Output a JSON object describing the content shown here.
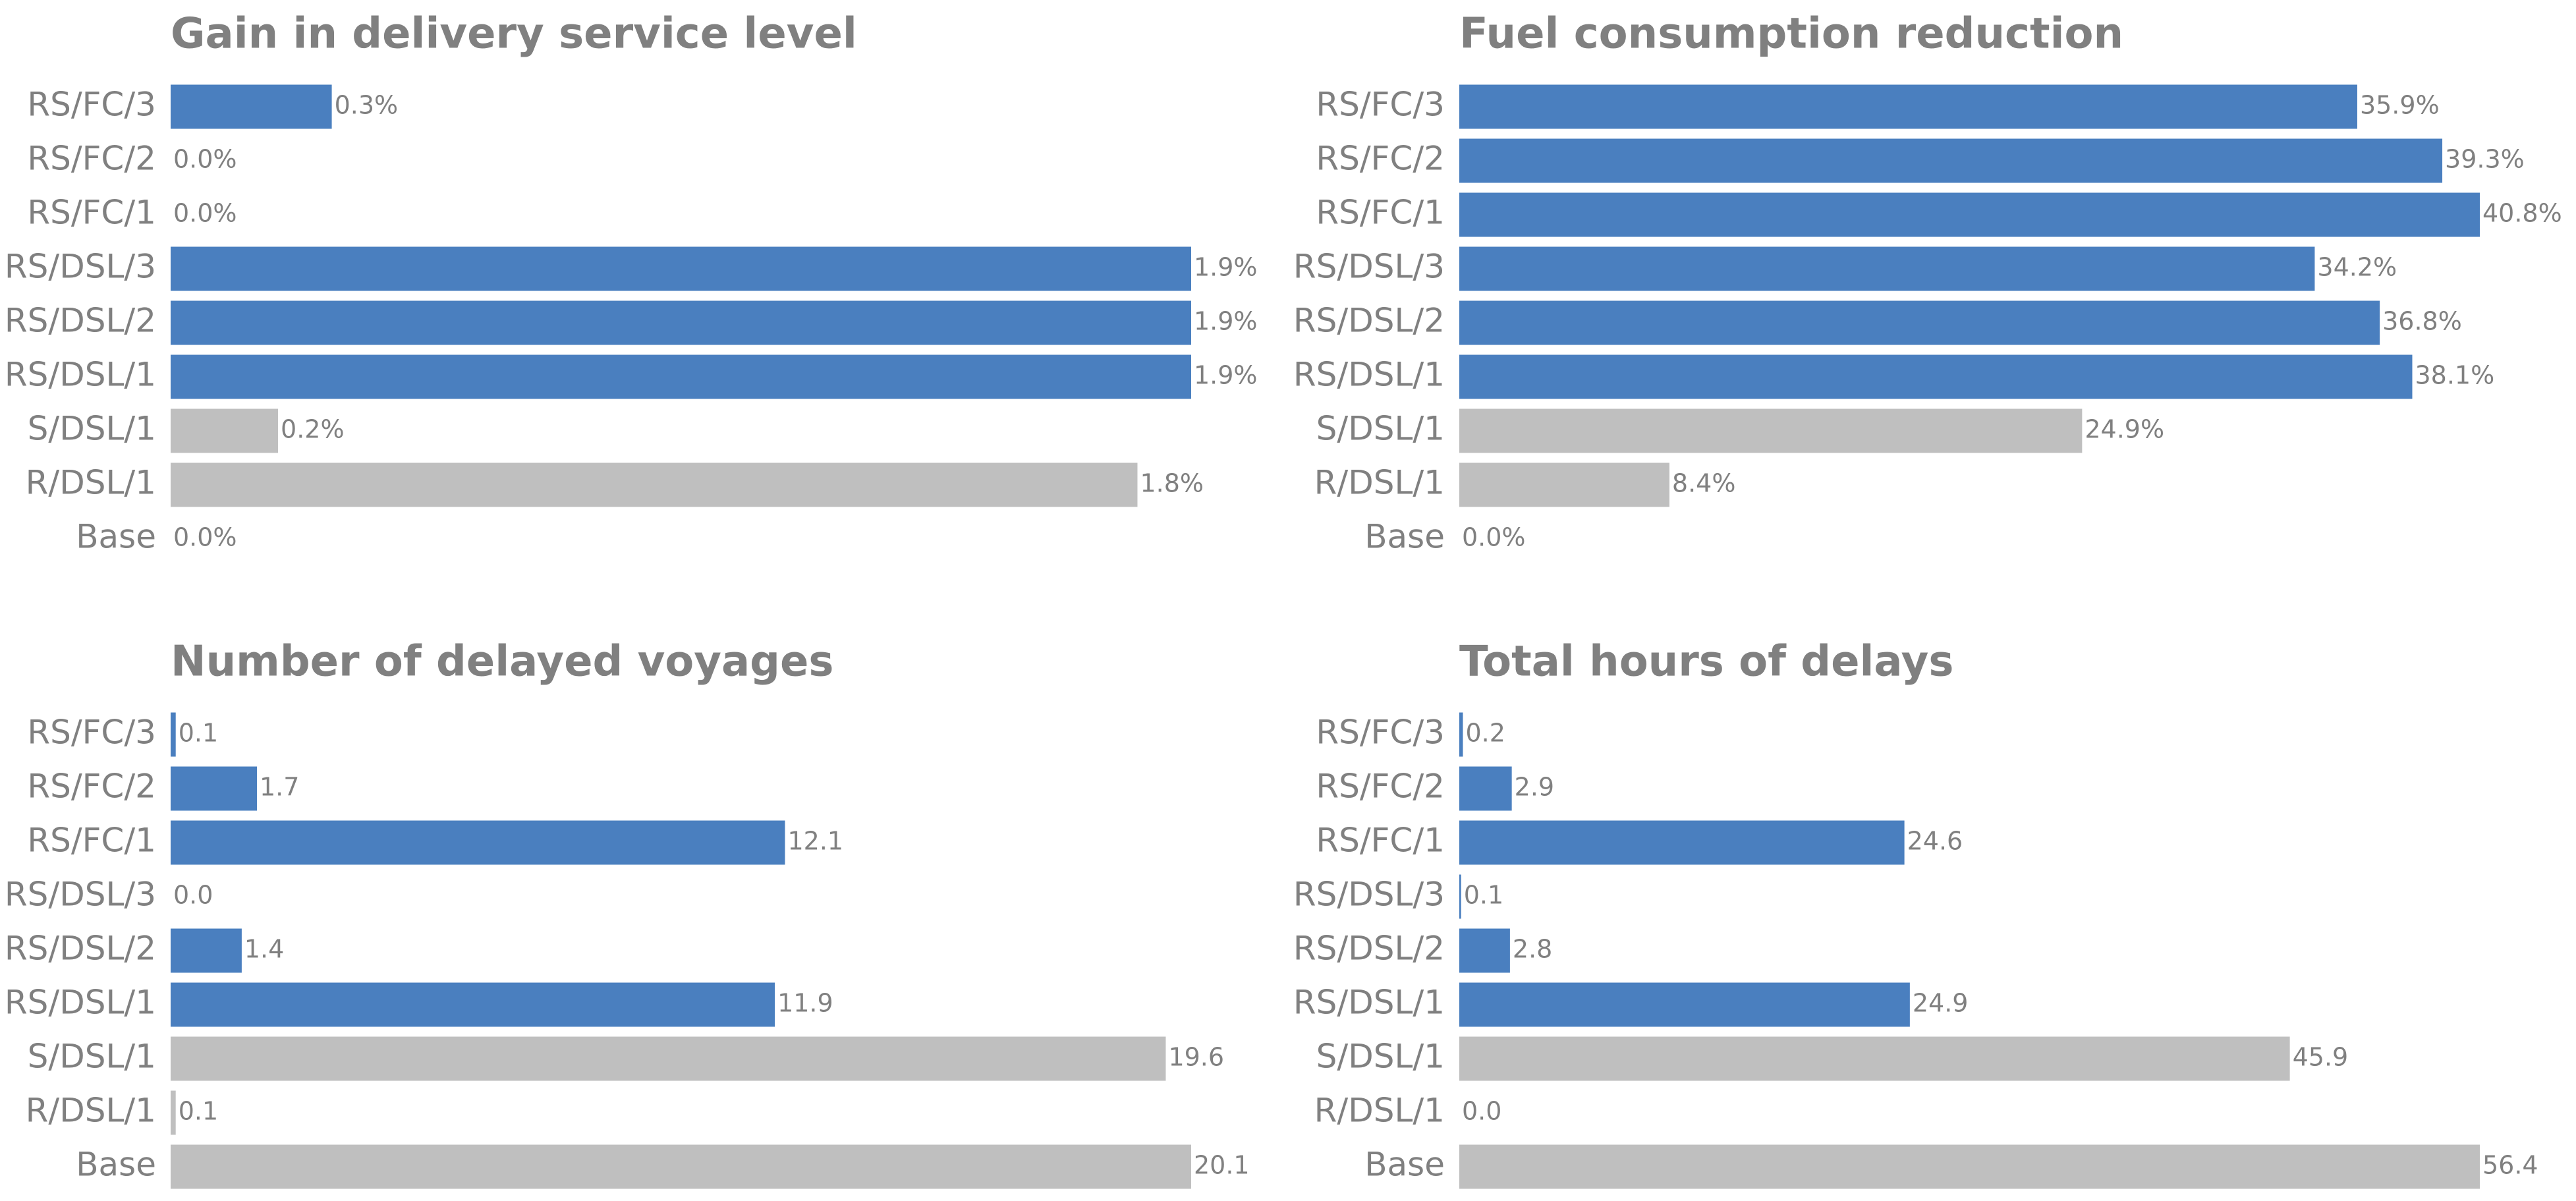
{
  "chart_data": [
    {
      "type": "barh",
      "title": "Gain in delivery service level",
      "categories": [
        "RS/FC/3",
        "RS/FC/2",
        "RS/FC/1",
        "RS/DSL/3",
        "RS/DSL/2",
        "RS/DSL/1",
        "S/DSL/1",
        "R/DSL/1",
        "Base"
      ],
      "values": [
        0.3,
        0.0,
        0.0,
        1.9,
        1.9,
        1.9,
        0.2,
        1.8,
        0.0
      ],
      "value_labels": [
        "0.3%",
        "0.0%",
        "0.0%",
        "1.9%",
        "1.9%",
        "1.9%",
        "0.2%",
        "1.8%",
        "0.0%"
      ],
      "colors": [
        "#4a7fbf",
        "#4a7fbf",
        "#4a7fbf",
        "#4a7fbf",
        "#4a7fbf",
        "#4a7fbf",
        "#bfbfbf",
        "#bfbfbf",
        "#bfbfbf"
      ],
      "xlim": [
        0,
        1.9
      ]
    },
    {
      "type": "barh",
      "title": "Fuel consumption reduction",
      "categories": [
        "RS/FC/3",
        "RS/FC/2",
        "RS/FC/1",
        "RS/DSL/3",
        "RS/DSL/2",
        "RS/DSL/1",
        "S/DSL/1",
        "R/DSL/1",
        "Base"
      ],
      "values": [
        35.9,
        39.3,
        40.8,
        34.2,
        36.8,
        38.1,
        24.9,
        8.4,
        0.0
      ],
      "value_labels": [
        "35.9%",
        "39.3%",
        "40.8%",
        "34.2%",
        "36.8%",
        "38.1%",
        "24.9%",
        "8.4%",
        "0.0%"
      ],
      "colors": [
        "#4a7fbf",
        "#4a7fbf",
        "#4a7fbf",
        "#4a7fbf",
        "#4a7fbf",
        "#4a7fbf",
        "#bfbfbf",
        "#bfbfbf",
        "#bfbfbf"
      ],
      "xlim": [
        0,
        40.8
      ]
    },
    {
      "type": "barh",
      "title": "Number of delayed voyages",
      "categories": [
        "RS/FC/3",
        "RS/FC/2",
        "RS/FC/1",
        "RS/DSL/3",
        "RS/DSL/2",
        "RS/DSL/1",
        "S/DSL/1",
        "R/DSL/1",
        "Base"
      ],
      "values": [
        0.1,
        1.7,
        12.1,
        0.0,
        1.4,
        11.9,
        19.6,
        0.1,
        20.1
      ],
      "value_labels": [
        "0.1",
        "1.7",
        "12.1",
        "0.0",
        "1.4",
        "11.9",
        "19.6",
        "0.1",
        "20.1"
      ],
      "colors": [
        "#4a7fbf",
        "#4a7fbf",
        "#4a7fbf",
        "#4a7fbf",
        "#4a7fbf",
        "#4a7fbf",
        "#bfbfbf",
        "#bfbfbf",
        "#bfbfbf"
      ],
      "xlim": [
        0,
        20.1
      ]
    },
    {
      "type": "barh",
      "title": "Total hours of delays",
      "categories": [
        "RS/FC/3",
        "RS/FC/2",
        "RS/FC/1",
        "RS/DSL/3",
        "RS/DSL/2",
        "RS/DSL/1",
        "S/DSL/1",
        "R/DSL/1",
        "Base"
      ],
      "values": [
        0.2,
        2.9,
        24.6,
        0.1,
        2.8,
        24.9,
        45.9,
        0.0,
        56.4
      ],
      "value_labels": [
        "0.2",
        "2.9",
        "24.6",
        "0.1",
        "2.8",
        "24.9",
        "45.9",
        "0.0",
        "56.4"
      ],
      "colors": [
        "#4a7fbf",
        "#4a7fbf",
        "#4a7fbf",
        "#4a7fbf",
        "#4a7fbf",
        "#4a7fbf",
        "#bfbfbf",
        "#bfbfbf",
        "#bfbfbf"
      ],
      "xlim": [
        0,
        56.4
      ]
    }
  ]
}
